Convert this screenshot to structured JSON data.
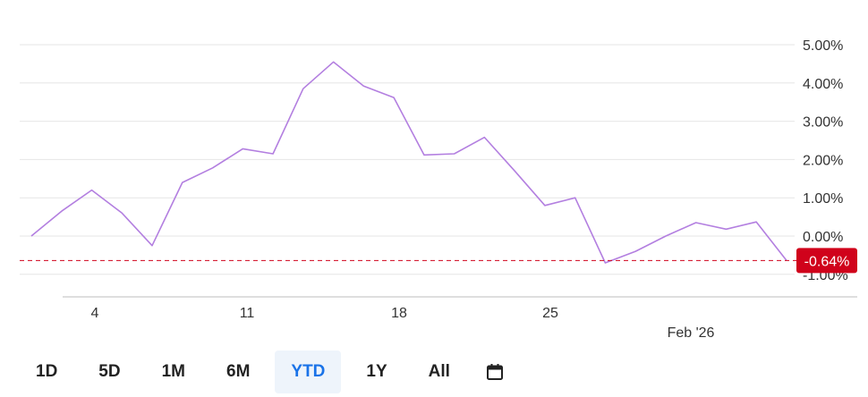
{
  "chart_data": {
    "type": "line",
    "series": [
      {
        "values": [
          0.0,
          0.65,
          1.2,
          0.6,
          -0.25,
          1.4,
          1.78,
          2.28,
          2.15,
          3.85,
          4.55,
          3.92,
          3.62,
          2.12,
          2.15,
          2.58,
          1.7,
          0.8,
          1.0,
          -0.7,
          -0.4,
          0.0,
          0.35,
          0.18,
          0.37,
          -0.64
        ]
      }
    ],
    "y_ticks": [
      "5.00%",
      "4.00%",
      "3.00%",
      "2.00%",
      "1.00%",
      "0.00%",
      "-1.00%"
    ],
    "y_tick_values": [
      5,
      4,
      3,
      2,
      1,
      0,
      -1
    ],
    "x_ticks": [
      "4",
      "11",
      "18",
      "25"
    ],
    "x_secondary_label": "Feb '26",
    "ylim": [
      -1.5,
      5.4
    ],
    "grid": true,
    "reference_line": {
      "value": -0.64,
      "style": "dashed"
    },
    "current_badge": {
      "label": "-0.64%",
      "color": "#d0021b"
    },
    "line_color": "#b37fe0"
  },
  "range_selector": {
    "buttons": [
      {
        "label": "1D",
        "active": false
      },
      {
        "label": "5D",
        "active": false
      },
      {
        "label": "1M",
        "active": false
      },
      {
        "label": "6M",
        "active": false
      },
      {
        "label": "YTD",
        "active": true
      },
      {
        "label": "1Y",
        "active": false
      },
      {
        "label": "All",
        "active": false
      }
    ],
    "calendar_icon": "calendar-icon"
  }
}
